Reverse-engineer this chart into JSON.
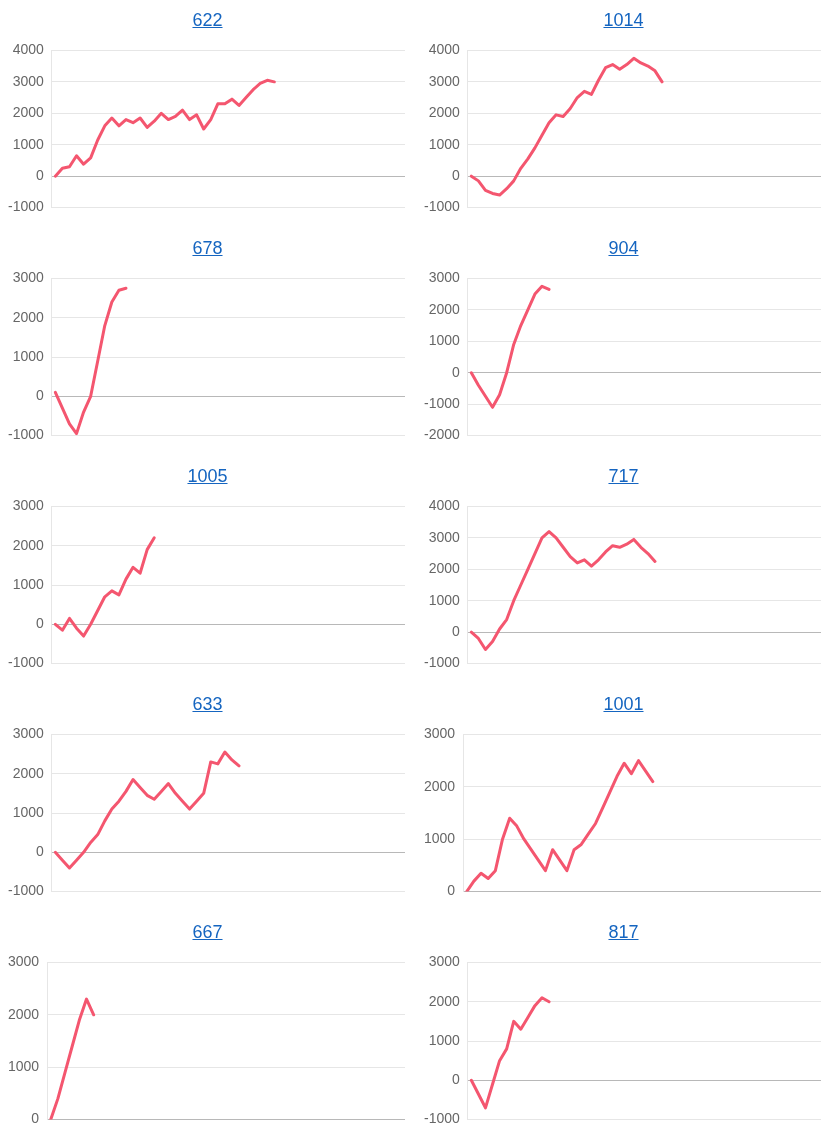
{
  "chart_data": [
    {
      "type": "line",
      "title": "622",
      "categories": [
        null,
        null,
        null,
        null,
        null,
        null,
        null,
        null,
        null,
        null,
        null,
        null,
        null,
        null,
        null,
        null,
        null,
        null,
        null,
        null,
        null,
        null,
        null,
        null,
        null,
        null,
        null,
        null,
        null,
        null,
        null,
        null,
        null,
        null,
        null,
        null,
        null,
        null,
        null,
        null,
        null,
        null,
        null,
        null,
        null,
        null,
        null,
        null,
        null,
        null
      ],
      "series": [
        {
          "color": "#f4566f",
          "values": [
            0,
            250,
            300,
            650,
            380,
            580,
            1150,
            1600,
            1850,
            1600,
            1800,
            1700,
            1850,
            1550,
            1750,
            2000,
            1800,
            1900,
            2100,
            1800,
            1950,
            1500,
            1800,
            2300,
            2300,
            2450,
            2250,
            2500,
            2750,
            2950,
            3050,
            3000,
            null,
            null,
            null,
            null,
            null,
            null,
            null,
            null,
            null,
            null,
            null,
            null,
            null,
            null,
            null,
            null,
            null,
            null
          ]
        }
      ],
      "ylim": [
        -1000,
        4000
      ],
      "yticks": [
        -1000,
        0,
        1000,
        2000,
        3000,
        4000
      ],
      "grid": "y",
      "marker": "none",
      "line_style": "solid",
      "legend": false,
      "tick_labels": "y"
    },
    {
      "type": "line",
      "title": "1014",
      "categories": [
        null,
        null,
        null,
        null,
        null,
        null,
        null,
        null,
        null,
        null,
        null,
        null,
        null,
        null,
        null,
        null,
        null,
        null,
        null,
        null,
        null,
        null,
        null,
        null,
        null,
        null,
        null,
        null,
        null,
        null,
        null,
        null,
        null,
        null,
        null,
        null,
        null,
        null,
        null,
        null,
        null,
        null,
        null,
        null,
        null,
        null,
        null,
        null,
        null,
        null
      ],
      "series": [
        {
          "color": "#f4566f",
          "values": [
            0,
            -150,
            -450,
            -550,
            -600,
            -400,
            -150,
            250,
            550,
            900,
            1300,
            1700,
            1950,
            1900,
            2150,
            2500,
            2700,
            2600,
            3050,
            3450,
            3550,
            3400,
            3550,
            3750,
            3600,
            3500,
            3350,
            3000,
            null,
            null,
            null,
            null,
            null,
            null,
            null,
            null,
            null,
            null,
            null,
            null,
            null,
            null,
            null,
            null,
            null,
            null,
            null,
            null,
            null,
            null
          ]
        }
      ],
      "ylim": [
        -1000,
        4000
      ],
      "yticks": [
        -1000,
        0,
        1000,
        2000,
        3000,
        4000
      ],
      "grid": "y",
      "marker": "none",
      "line_style": "solid",
      "legend": false,
      "tick_labels": "y"
    },
    {
      "type": "line",
      "title": "678",
      "categories": [
        null,
        null,
        null,
        null,
        null,
        null,
        null,
        null,
        null,
        null,
        null,
        null,
        null,
        null,
        null,
        null,
        null,
        null,
        null,
        null,
        null,
        null,
        null,
        null,
        null,
        null,
        null,
        null,
        null,
        null,
        null,
        null,
        null,
        null,
        null,
        null,
        null,
        null,
        null,
        null,
        null,
        null,
        null,
        null,
        null,
        null,
        null,
        null,
        null,
        null
      ],
      "series": [
        {
          "color": "#f4566f",
          "values": [
            100,
            -300,
            -700,
            -950,
            -400,
            0,
            900,
            1800,
            2400,
            2700,
            2750,
            null,
            null,
            null,
            null,
            null,
            null,
            null,
            null,
            null,
            null,
            null,
            null,
            null,
            null,
            null,
            null,
            null,
            null,
            null,
            null,
            null,
            null,
            null,
            null,
            null,
            null,
            null,
            null,
            null,
            null,
            null,
            null,
            null,
            null,
            null,
            null,
            null,
            null,
            null
          ]
        }
      ],
      "ylim": [
        -1000,
        3000
      ],
      "yticks": [
        -1000,
        0,
        1000,
        2000,
        3000
      ],
      "grid": "y",
      "marker": "none",
      "line_style": "solid",
      "legend": false,
      "tick_labels": "y"
    },
    {
      "type": "line",
      "title": "904",
      "categories": [
        null,
        null,
        null,
        null,
        null,
        null,
        null,
        null,
        null,
        null,
        null,
        null,
        null,
        null,
        null,
        null,
        null,
        null,
        null,
        null,
        null,
        null,
        null,
        null,
        null,
        null,
        null,
        null,
        null,
        null,
        null,
        null,
        null,
        null,
        null,
        null,
        null,
        null,
        null,
        null,
        null,
        null,
        null,
        null,
        null,
        null,
        null,
        null,
        null,
        null
      ],
      "series": [
        {
          "color": "#f4566f",
          "values": [
            0,
            -400,
            -750,
            -1100,
            -700,
            0,
            900,
            1500,
            2000,
            2500,
            2750,
            2650,
            null,
            null,
            null,
            null,
            null,
            null,
            null,
            null,
            null,
            null,
            null,
            null,
            null,
            null,
            null,
            null,
            null,
            null,
            null,
            null,
            null,
            null,
            null,
            null,
            null,
            null,
            null,
            null,
            null,
            null,
            null,
            null,
            null,
            null,
            null,
            null,
            null,
            null
          ]
        }
      ],
      "ylim": [
        -2000,
        3000
      ],
      "yticks": [
        -2000,
        -1000,
        0,
        1000,
        2000,
        3000
      ],
      "grid": "y",
      "marker": "none",
      "line_style": "solid",
      "legend": false,
      "tick_labels": "y"
    },
    {
      "type": "line",
      "title": "1005",
      "categories": [
        null,
        null,
        null,
        null,
        null,
        null,
        null,
        null,
        null,
        null,
        null,
        null,
        null,
        null,
        null,
        null,
        null,
        null,
        null,
        null,
        null,
        null,
        null,
        null,
        null,
        null,
        null,
        null,
        null,
        null,
        null,
        null,
        null,
        null,
        null,
        null,
        null,
        null,
        null,
        null,
        null,
        null,
        null,
        null,
        null,
        null,
        null,
        null,
        null,
        null
      ],
      "series": [
        {
          "color": "#f4566f",
          "values": [
            0,
            -150,
            150,
            -100,
            -300,
            0,
            350,
            700,
            850,
            750,
            1150,
            1450,
            1300,
            1900,
            2200,
            null,
            null,
            null,
            null,
            null,
            null,
            null,
            null,
            null,
            null,
            null,
            null,
            null,
            null,
            null,
            null,
            null,
            null,
            null,
            null,
            null,
            null,
            null,
            null,
            null,
            null,
            null,
            null,
            null,
            null,
            null,
            null,
            null,
            null,
            null
          ]
        }
      ],
      "ylim": [
        -1000,
        3000
      ],
      "yticks": [
        -1000,
        0,
        1000,
        2000,
        3000
      ],
      "grid": "y",
      "marker": "none",
      "line_style": "solid",
      "legend": false,
      "tick_labels": "y"
    },
    {
      "type": "line",
      "title": "717",
      "categories": [
        null,
        null,
        null,
        null,
        null,
        null,
        null,
        null,
        null,
        null,
        null,
        null,
        null,
        null,
        null,
        null,
        null,
        null,
        null,
        null,
        null,
        null,
        null,
        null,
        null,
        null,
        null,
        null,
        null,
        null,
        null,
        null,
        null,
        null,
        null,
        null,
        null,
        null,
        null,
        null,
        null,
        null,
        null,
        null,
        null,
        null,
        null,
        null,
        null,
        null
      ],
      "series": [
        {
          "color": "#f4566f",
          "values": [
            0,
            -200,
            -550,
            -300,
            100,
            400,
            1000,
            1500,
            2000,
            2500,
            3000,
            3200,
            3000,
            2700,
            2400,
            2200,
            2300,
            2100,
            2300,
            2550,
            2750,
            2700,
            2800,
            2950,
            2700,
            2500,
            2250,
            null,
            null,
            null,
            null,
            null,
            null,
            null,
            null,
            null,
            null,
            null,
            null,
            null,
            null,
            null,
            null,
            null,
            null,
            null,
            null,
            null,
            null,
            null
          ]
        }
      ],
      "ylim": [
        -1000,
        4000
      ],
      "yticks": [
        -1000,
        0,
        1000,
        2000,
        3000,
        4000
      ],
      "grid": "y",
      "marker": "none",
      "line_style": "solid",
      "legend": false,
      "tick_labels": "y"
    },
    {
      "type": "line",
      "title": "633",
      "categories": [
        null,
        null,
        null,
        null,
        null,
        null,
        null,
        null,
        null,
        null,
        null,
        null,
        null,
        null,
        null,
        null,
        null,
        null,
        null,
        null,
        null,
        null,
        null,
        null,
        null,
        null,
        null,
        null,
        null,
        null,
        null,
        null,
        null,
        null,
        null,
        null,
        null,
        null,
        null,
        null,
        null,
        null,
        null,
        null,
        null,
        null,
        null,
        null,
        null,
        null
      ],
      "series": [
        {
          "color": "#f4566f",
          "values": [
            0,
            -200,
            -400,
            -200,
            0,
            250,
            450,
            800,
            1100,
            1300,
            1550,
            1850,
            1650,
            1450,
            1350,
            1550,
            1750,
            1500,
            1300,
            1100,
            1300,
            1500,
            2300,
            2250,
            2550,
            2350,
            2200,
            null,
            null,
            null,
            null,
            null,
            null,
            null,
            null,
            null,
            null,
            null,
            null,
            null,
            null,
            null,
            null,
            null,
            null,
            null,
            null,
            null,
            null,
            null
          ]
        }
      ],
      "ylim": [
        -1000,
        3000
      ],
      "yticks": [
        -1000,
        0,
        1000,
        2000,
        3000
      ],
      "grid": "y",
      "marker": "none",
      "line_style": "solid",
      "legend": false,
      "tick_labels": "y"
    },
    {
      "type": "line",
      "title": "1001",
      "categories": [
        null,
        null,
        null,
        null,
        null,
        null,
        null,
        null,
        null,
        null,
        null,
        null,
        null,
        null,
        null,
        null,
        null,
        null,
        null,
        null,
        null,
        null,
        null,
        null,
        null,
        null,
        null,
        null,
        null,
        null,
        null,
        null,
        null,
        null,
        null,
        null,
        null,
        null,
        null,
        null,
        null,
        null,
        null,
        null,
        null,
        null,
        null,
        null,
        null,
        null
      ],
      "series": [
        {
          "color": "#f4566f",
          "values": [
            0,
            200,
            350,
            250,
            400,
            1000,
            1400,
            1250,
            1000,
            800,
            600,
            400,
            800,
            600,
            400,
            800,
            900,
            1100,
            1300,
            1600,
            1900,
            2200,
            2450,
            2250,
            2500,
            2300,
            2100,
            null,
            null,
            null,
            null,
            null,
            null,
            null,
            null,
            null,
            null,
            null,
            null,
            null,
            null,
            null,
            null,
            null,
            null,
            null,
            null,
            null,
            null,
            null
          ]
        }
      ],
      "ylim": [
        0,
        3000
      ],
      "yticks": [
        0,
        1000,
        2000,
        3000
      ],
      "grid": "y",
      "marker": "none",
      "line_style": "solid",
      "legend": false,
      "tick_labels": "y"
    },
    {
      "type": "line",
      "title": "667",
      "categories": [
        null,
        null,
        null,
        null,
        null,
        null,
        null,
        null,
        null,
        null,
        null,
        null,
        null,
        null,
        null,
        null,
        null,
        null,
        null,
        null,
        null,
        null,
        null,
        null,
        null,
        null,
        null,
        null,
        null,
        null,
        null,
        null,
        null,
        null,
        null,
        null,
        null,
        null,
        null,
        null,
        null,
        null,
        null,
        null,
        null,
        null,
        null,
        null,
        null,
        null
      ],
      "series": [
        {
          "color": "#f4566f",
          "values": [
            0,
            400,
            900,
            1400,
            1900,
            2300,
            2000,
            null,
            null,
            null,
            null,
            null,
            null,
            null,
            null,
            null,
            null,
            null,
            null,
            null,
            null,
            null,
            null,
            null,
            null,
            null,
            null,
            null,
            null,
            null,
            null,
            null,
            null,
            null,
            null,
            null,
            null,
            null,
            null,
            null,
            null,
            null,
            null,
            null,
            null,
            null,
            null,
            null,
            null,
            null
          ]
        }
      ],
      "ylim": [
        0,
        3000
      ],
      "yticks": [
        0,
        1000,
        2000,
        3000
      ],
      "grid": "y",
      "marker": "none",
      "line_style": "solid",
      "legend": false,
      "tick_labels": "y"
    },
    {
      "type": "line",
      "title": "817",
      "categories": [
        null,
        null,
        null,
        null,
        null,
        null,
        null,
        null,
        null,
        null,
        null,
        null,
        null,
        null,
        null,
        null,
        null,
        null,
        null,
        null,
        null,
        null,
        null,
        null,
        null,
        null,
        null,
        null,
        null,
        null,
        null,
        null,
        null,
        null,
        null,
        null,
        null,
        null,
        null,
        null,
        null,
        null,
        null,
        null,
        null,
        null,
        null,
        null,
        null,
        null
      ],
      "series": [
        {
          "color": "#f4566f",
          "values": [
            0,
            -350,
            -700,
            -100,
            500,
            800,
            1500,
            1300,
            1600,
            1900,
            2100,
            2000,
            null,
            null,
            null,
            null,
            null,
            null,
            null,
            null,
            null,
            null,
            null,
            null,
            null,
            null,
            null,
            null,
            null,
            null,
            null,
            null,
            null,
            null,
            null,
            null,
            null,
            null,
            null,
            null,
            null,
            null,
            null,
            null,
            null,
            null,
            null,
            null,
            null,
            null
          ]
        }
      ],
      "ylim": [
        -1000,
        3000
      ],
      "yticks": [
        -1000,
        0,
        1000,
        2000,
        3000
      ],
      "grid": "y",
      "marker": "none",
      "line_style": "solid",
      "legend": false,
      "tick_labels": "y"
    }
  ]
}
